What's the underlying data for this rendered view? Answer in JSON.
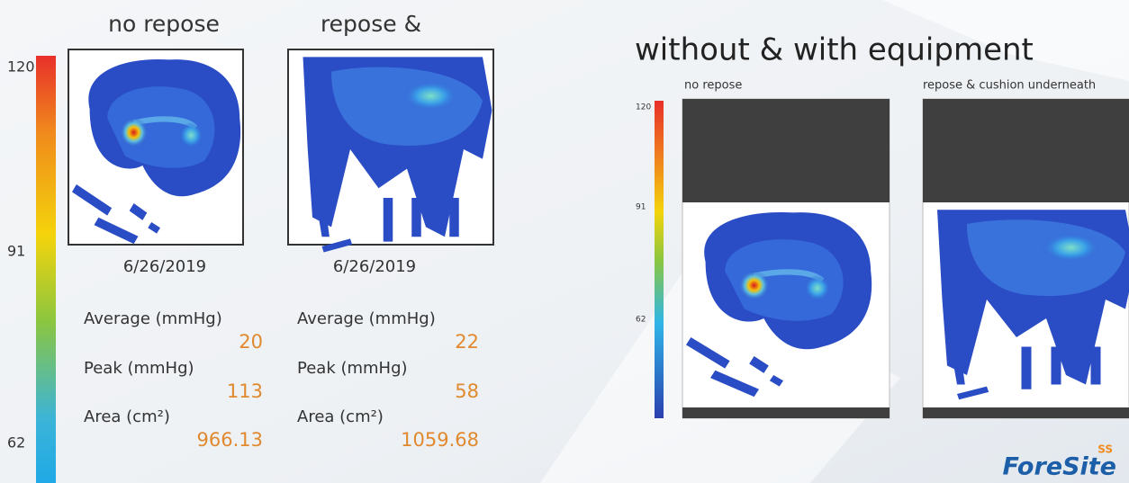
{
  "left": {
    "scale": {
      "labels": [
        120,
        91,
        62
      ]
    },
    "panels": [
      {
        "title": "no repose",
        "date": "6/26/2019",
        "stats": [
          {
            "label": "Average (mmHg)",
            "value": 20
          },
          {
            "label": "Peak (mmHg)",
            "value": 113
          },
          {
            "label": "Area (cm²)",
            "value": 966.13
          }
        ]
      },
      {
        "title": "repose &",
        "date": "6/26/2019",
        "stats": [
          {
            "label": "Average (mmHg)",
            "value": 22
          },
          {
            "label": "Peak (mmHg)",
            "value": 58
          },
          {
            "label": "Area (cm²)",
            "value": 1059.68
          }
        ]
      }
    ]
  },
  "right": {
    "title": "without & with equipment",
    "scale": {
      "labels": [
        120,
        91,
        62
      ]
    },
    "panels": [
      {
        "title": "no repose"
      },
      {
        "title": "repose & cushion underneath"
      }
    ]
  },
  "logo": {
    "name": "ForeSite",
    "mark": "SS"
  }
}
